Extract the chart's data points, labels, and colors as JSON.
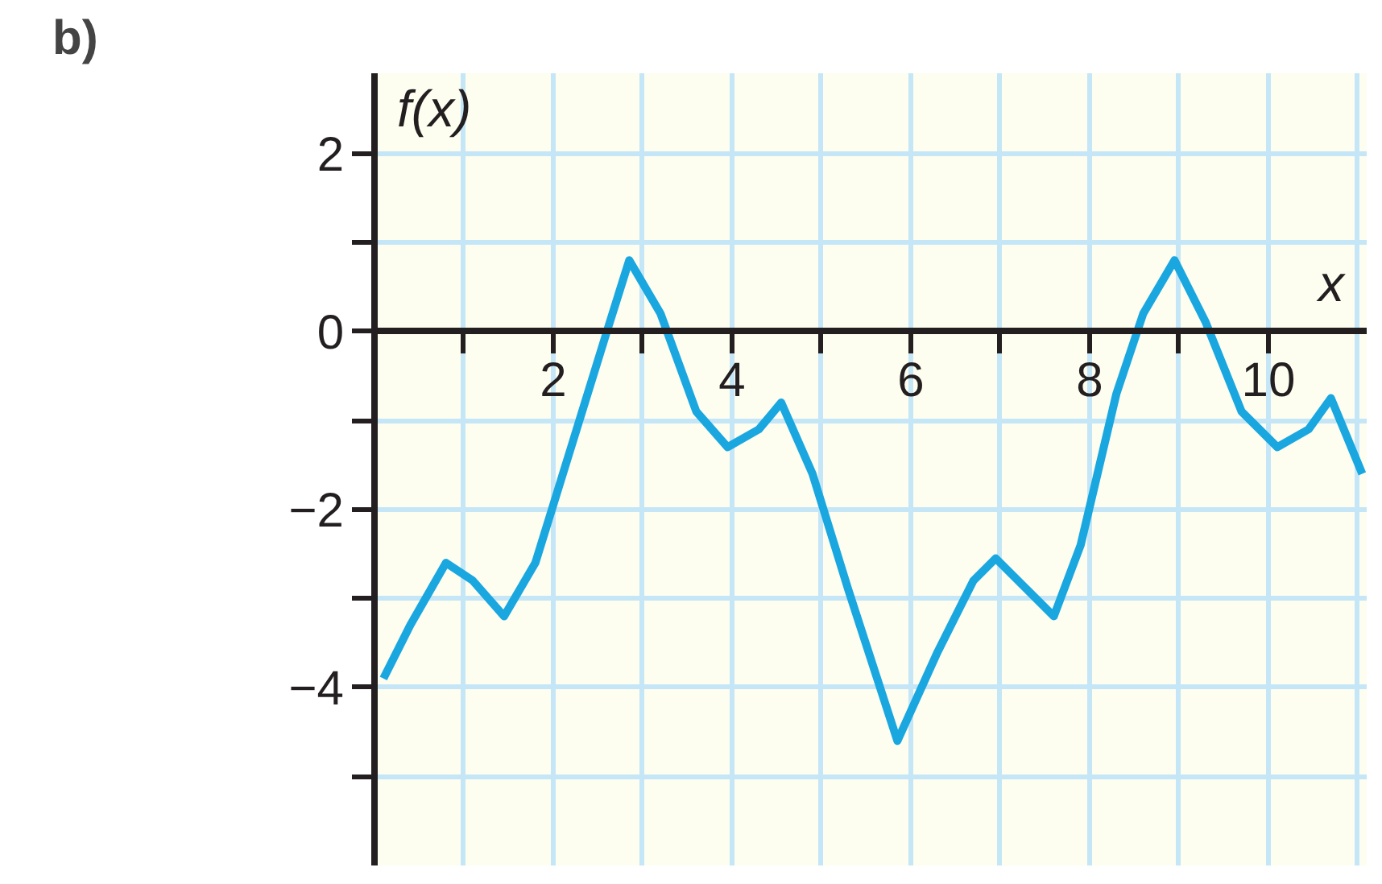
{
  "chart_data": {
    "type": "line",
    "title": "b)",
    "xlabel": "x",
    "ylabel": "f(x)",
    "xlim": [
      0,
      11.1
    ],
    "ylim": [
      -6,
      2.9
    ],
    "xticks": [
      {
        "value": 1,
        "label": null
      },
      2,
      {
        "value": 3,
        "label": null
      },
      4,
      {
        "value": 5,
        "label": null
      },
      6,
      {
        "value": 7,
        "label": null
      },
      8,
      {
        "value": 9,
        "label": null
      },
      10
    ],
    "yticks": [
      {
        "value": -5,
        "label": null
      },
      {
        "value": -4,
        "label": "−4"
      },
      {
        "value": -3,
        "label": null
      },
      {
        "value": -2,
        "label": "−2"
      },
      {
        "value": -1,
        "label": null
      },
      0,
      {
        "value": 1,
        "label": null
      },
      2
    ],
    "grid": true,
    "marker": "none",
    "line_style": "solid",
    "series": [
      {
        "color": "#1aa7e0",
        "x": [
          0.1,
          0.4,
          0.8,
          1.1,
          1.45,
          1.8,
          2.2,
          2.6,
          2.85,
          3.2,
          3.6,
          3.95,
          4.3,
          4.55,
          4.9,
          5.3,
          5.85,
          6.3,
          6.7,
          6.95,
          7.3,
          7.6,
          7.9,
          8.3,
          8.6,
          8.95,
          9.3,
          9.7,
          10.1,
          10.45,
          10.7,
          11.05
        ],
        "values": [
          -3.9,
          -3.3,
          -2.6,
          -2.8,
          -3.2,
          -2.6,
          -1.3,
          0.0,
          0.8,
          0.2,
          -0.9,
          -1.3,
          -1.1,
          -0.8,
          -1.6,
          -2.9,
          -4.6,
          -3.6,
          -2.8,
          -2.55,
          -2.9,
          -3.2,
          -2.4,
          -0.7,
          0.2,
          0.8,
          0.1,
          -0.9,
          -1.3,
          -1.1,
          -0.75,
          -1.6
        ]
      }
    ]
  }
}
